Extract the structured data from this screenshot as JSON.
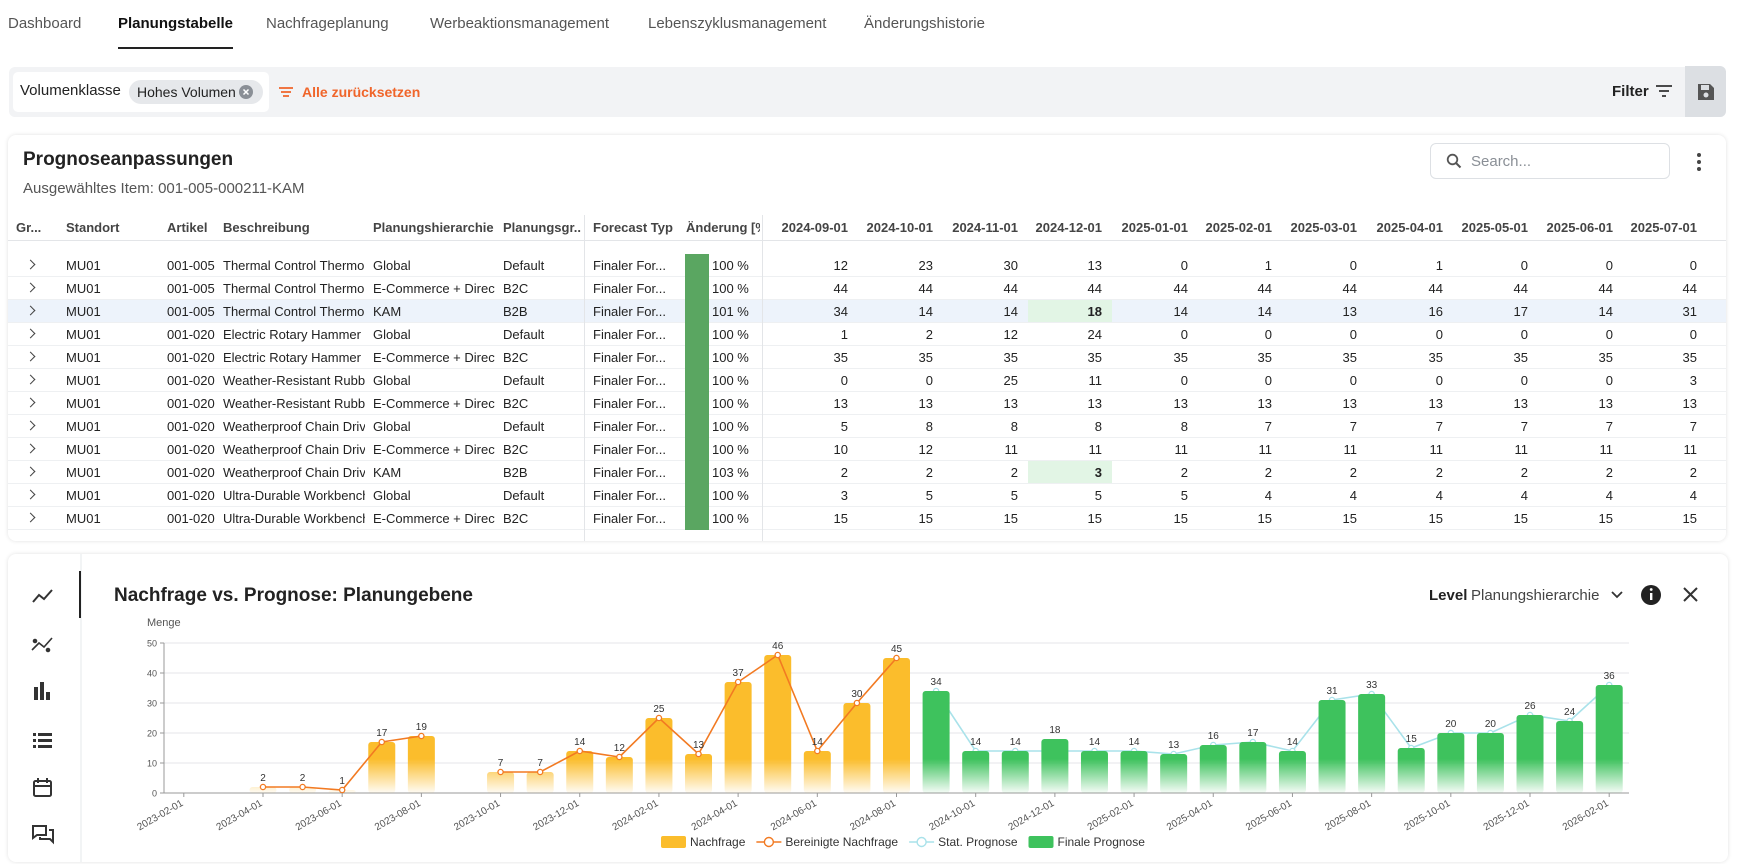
{
  "tabs": [
    "Dashboard",
    "Planungstabelle",
    "Nachfrageplanung",
    "Werbeaktionsmanagement",
    "Lebenszyklusmanagement",
    "Änderungshistorie"
  ],
  "filter": {
    "label": "Volumenklasse",
    "chip": "Hohes Volumen",
    "reset": "Alle zurücksetzen",
    "button": "Filter"
  },
  "table_card": {
    "title": "Prognoseanpassungen",
    "subtitle": "Ausgewähltes Item: 001-005-000211-KAM",
    "search_placeholder": "Search...",
    "columns": [
      "Gr...",
      "Standort",
      "Artikel",
      "Beschreibung",
      "Planungshierarchie",
      "Planungsgr...",
      "Forecast Typ",
      "Änderung [%]",
      "2024-09-01",
      "2024-10-01",
      "2024-11-01",
      "2024-12-01",
      "2025-01-01",
      "2025-02-01",
      "2025-03-01",
      "2025-04-01",
      "2025-05-01",
      "2025-06-01",
      "2025-07-01"
    ],
    "rows": [
      [
        "MU01",
        "001-005",
        "Thermal Control Thermo",
        "Global",
        "Default",
        "Finaler For...",
        "100 %",
        12,
        23,
        30,
        13,
        0,
        1,
        0,
        1,
        0,
        0,
        0
      ],
      [
        "MU01",
        "001-005",
        "Thermal Control Thermo",
        "E-Commerce + Direct",
        "B2C",
        "Finaler For...",
        "100 %",
        44,
        44,
        44,
        44,
        44,
        44,
        44,
        44,
        44,
        44,
        44
      ],
      [
        "MU01",
        "001-005",
        "Thermal Control Thermo",
        "KAM",
        "B2B",
        "Finaler For...",
        "101 %",
        34,
        14,
        14,
        18,
        14,
        14,
        13,
        16,
        17,
        14,
        31
      ],
      [
        "MU01",
        "001-020",
        "Electric Rotary Hammer D",
        "Global",
        "Default",
        "Finaler For...",
        "100 %",
        1,
        2,
        12,
        24,
        0,
        0,
        0,
        0,
        0,
        0,
        0
      ],
      [
        "MU01",
        "001-020",
        "Electric Rotary Hammer D",
        "E-Commerce + Direct",
        "B2C",
        "Finaler For...",
        "100 %",
        35,
        35,
        35,
        35,
        35,
        35,
        35,
        35,
        35,
        35,
        35
      ],
      [
        "MU01",
        "001-020",
        "Weather-Resistant Rubbe",
        "Global",
        "Default",
        "Finaler For...",
        "100 %",
        0,
        0,
        25,
        11,
        0,
        0,
        0,
        0,
        0,
        0,
        3
      ],
      [
        "MU01",
        "001-020",
        "Weather-Resistant Rubbe",
        "E-Commerce + Direct",
        "B2C",
        "Finaler For...",
        "100 %",
        13,
        13,
        13,
        13,
        13,
        13,
        13,
        13,
        13,
        13,
        13
      ],
      [
        "MU01",
        "001-020",
        "Weatherproof Chain Drive",
        "Global",
        "Default",
        "Finaler For...",
        "100 %",
        5,
        8,
        8,
        8,
        8,
        7,
        7,
        7,
        7,
        7,
        7
      ],
      [
        "MU01",
        "001-020",
        "Weatherproof Chain Drive",
        "E-Commerce + Direct",
        "B2C",
        "Finaler For...",
        "100 %",
        10,
        12,
        11,
        11,
        11,
        11,
        11,
        11,
        11,
        11,
        11
      ],
      [
        "MU01",
        "001-020",
        "Weatherproof Chain Drive",
        "KAM",
        "B2B",
        "Finaler For...",
        "103 %",
        2,
        2,
        2,
        3,
        2,
        2,
        2,
        2,
        2,
        2,
        2
      ],
      [
        "MU01",
        "001-020",
        "Ultra-Durable Workbench",
        "Global",
        "Default",
        "Finaler For...",
        "100 %",
        3,
        5,
        5,
        5,
        5,
        4,
        4,
        4,
        4,
        4,
        4
      ],
      [
        "MU01",
        "001-020",
        "Ultra-Durable Workbench",
        "E-Commerce + Direct",
        "B2C",
        "Finaler For...",
        "100 %",
        15,
        15,
        15,
        15,
        15,
        15,
        15,
        15,
        15,
        15,
        15
      ]
    ]
  },
  "chart_data": {
    "type": "bar",
    "title": "Nachfrage vs. Prognose: Planungebene",
    "level_label": "Level",
    "level_value": "Planungshierarchie",
    "ylabel": "Menge",
    "categories": [
      "2023-02-01",
      null,
      "2023-04-01",
      null,
      "2023-06-01",
      null,
      "2023-08-01",
      null,
      "2023-10-01",
      null,
      "2023-12-01",
      null,
      "2024-02-01",
      null,
      "2024-04-01",
      null,
      "2024-06-01",
      null,
      "2024-08-01",
      null,
      "2024-10-01",
      null,
      "2024-12-01",
      null,
      "2025-02-01",
      null,
      "2025-04-01",
      null,
      "2025-06-01",
      null,
      "2025-08-01",
      null,
      "2025-10-01",
      null,
      "2025-12-01",
      null,
      "2026-02-01"
    ],
    "ylim": [
      0,
      50
    ],
    "yticks": [
      0,
      10,
      20,
      30,
      40,
      50
    ],
    "grid": true,
    "series": [
      {
        "name": "Nachfrage",
        "type": "bar",
        "color": "#fbbd2c",
        "values": [
          null,
          null,
          2,
          2,
          1,
          17,
          19,
          null,
          7,
          7,
          14,
          12,
          25,
          13,
          37,
          46,
          14,
          30,
          45,
          null,
          null,
          null,
          null,
          null,
          null,
          null,
          null,
          null,
          null,
          null,
          null,
          null,
          null,
          null,
          null,
          null,
          null
        ]
      },
      {
        "name": "Bereinigte Nachfrage",
        "type": "line",
        "color": "#f27a22",
        "values": [
          null,
          null,
          2,
          2,
          1,
          17,
          19,
          null,
          7,
          7,
          14,
          12,
          25,
          13,
          37,
          46,
          14,
          30,
          45,
          null,
          null,
          null,
          null,
          null,
          null,
          null,
          null,
          null,
          null,
          null,
          null,
          null,
          null,
          null,
          null,
          null,
          null
        ]
      },
      {
        "name": "Stat. Prognose",
        "type": "line",
        "color": "#a9e2ea",
        "values": [
          null,
          null,
          null,
          null,
          null,
          null,
          null,
          null,
          null,
          null,
          null,
          null,
          null,
          null,
          null,
          null,
          null,
          null,
          null,
          34,
          14,
          14,
          14,
          14,
          14,
          13,
          16,
          17,
          14,
          31,
          33,
          15,
          20,
          20,
          26,
          24,
          36
        ]
      },
      {
        "name": "Finale Prognose",
        "type": "bar",
        "color": "#3ec25d",
        "values": [
          null,
          null,
          null,
          null,
          null,
          null,
          null,
          null,
          null,
          null,
          null,
          null,
          null,
          null,
          null,
          null,
          null,
          null,
          null,
          34,
          14,
          14,
          18,
          14,
          14,
          13,
          16,
          17,
          14,
          31,
          33,
          15,
          20,
          20,
          26,
          24,
          36
        ]
      }
    ]
  }
}
